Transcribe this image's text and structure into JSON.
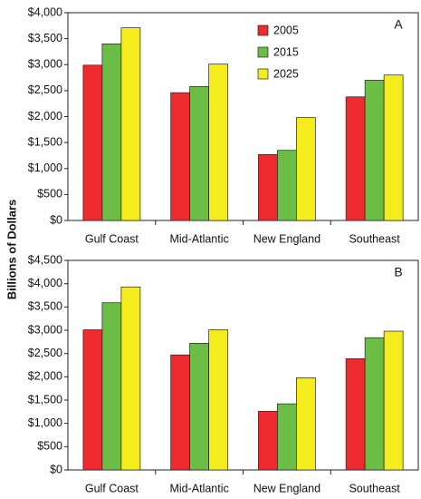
{
  "chart_data": [
    {
      "type": "bar",
      "annotation": "A",
      "ylabel": "Billions of Dollars",
      "legend": "upper right",
      "categories": [
        "Gulf Coast",
        "Mid-Atlantic",
        "New England",
        "Southeast"
      ],
      "series": [
        {
          "name": "2005",
          "color": "#ee2a2e",
          "values": [
            2990,
            2460,
            1270,
            2380
          ]
        },
        {
          "name": "2015",
          "color": "#6cbd45",
          "values": [
            3400,
            2580,
            1350,
            2700
          ]
        },
        {
          "name": "2025",
          "color": "#f4ec1c",
          "values": [
            3710,
            3010,
            1980,
            2800
          ]
        }
      ],
      "ylim": [
        0,
        4000
      ],
      "yticks": [
        {
          "value": 0,
          "label": "$0"
        },
        {
          "value": 500,
          "label": "$500"
        },
        {
          "value": 1000,
          "label": "$1,000"
        },
        {
          "value": 1500,
          "label": "$1,500"
        },
        {
          "value": 2000,
          "label": "$2,000"
        },
        {
          "value": 2500,
          "label": "$2,500"
        },
        {
          "value": 3000,
          "label": "$3,000"
        },
        {
          "value": 3500,
          "label": "$3,500"
        },
        {
          "value": 4000,
          "label": "$4,000"
        }
      ]
    },
    {
      "type": "bar",
      "annotation": "B",
      "categories": [
        "Gulf Coast",
        "Mid-Atlantic",
        "New England",
        "Southeast"
      ],
      "series": [
        {
          "name": "2005",
          "color": "#ee2a2e",
          "values": [
            3010,
            2470,
            1260,
            2390
          ]
        },
        {
          "name": "2015",
          "color": "#6cbd45",
          "values": [
            3590,
            2720,
            1420,
            2840
          ]
        },
        {
          "name": "2025",
          "color": "#f4ec1c",
          "values": [
            3930,
            3010,
            1980,
            2980
          ]
        }
      ],
      "ylim": [
        0,
        4500
      ],
      "yticks": [
        {
          "value": 0,
          "label": "$0"
        },
        {
          "value": 500,
          "label": "$500"
        },
        {
          "value": 1000,
          "label": "$1,000"
        },
        {
          "value": 1500,
          "label": "$1,500"
        },
        {
          "value": 2000,
          "label": "$2,000"
        },
        {
          "value": 2500,
          "label": "$2,500"
        },
        {
          "value": 3000,
          "label": "$3,000"
        },
        {
          "value": 3500,
          "label": "$3,500"
        },
        {
          "value": 4000,
          "label": "$4,000"
        },
        {
          "value": 4500,
          "label": "$4,500"
        }
      ]
    }
  ]
}
